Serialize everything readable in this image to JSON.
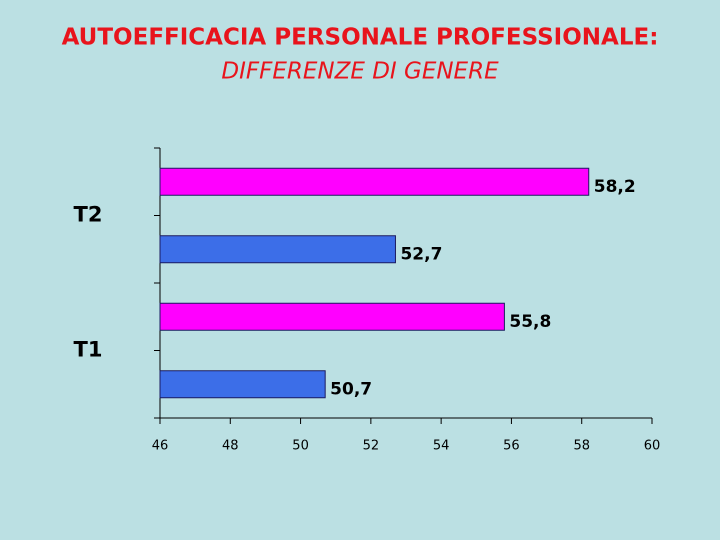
{
  "chart_data": {
    "type": "hbar",
    "title": "AUTOEFFICACIA PERSONALE PROFESSIONALE:",
    "subtitle": "DIFFERENZE DI GENERE",
    "categories": [
      "T1",
      "T2"
    ],
    "series": [
      {
        "color": "#3c6ee8",
        "values": [
          50.7,
          52.7
        ],
        "value_labels": [
          "50,7",
          "52,7"
        ]
      },
      {
        "color": "#ff00ff",
        "values": [
          55.8,
          58.2
        ],
        "value_labels": [
          "55,8",
          "58,2"
        ]
      }
    ],
    "xlim": [
      46,
      60
    ],
    "xticks": [
      46,
      48,
      50,
      52,
      54,
      56,
      58,
      60
    ]
  }
}
